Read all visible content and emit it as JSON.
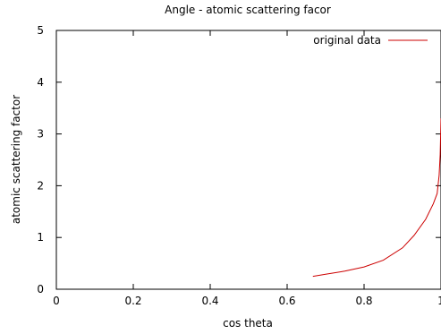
{
  "chart_data": {
    "type": "line",
    "title": "Angle - atomic scattering facor",
    "xlabel": "cos theta",
    "ylabel": "atomic scattering factor",
    "xlim": [
      0,
      1
    ],
    "ylim": [
      0,
      5
    ],
    "xticks": [
      0,
      0.2,
      0.4,
      0.6,
      0.8,
      1
    ],
    "yticks": [
      0,
      1,
      2,
      3,
      4,
      5
    ],
    "xtick_labels": [
      "0",
      "0.2",
      "0.4",
      "0.6",
      "0.8",
      "1"
    ],
    "ytick_labels": [
      "0",
      "1",
      "2",
      "3",
      "4",
      "5"
    ],
    "grid": false,
    "legend_position": "top-right",
    "series": [
      {
        "name": "original data",
        "color": "#cc0000",
        "x": [
          0.667,
          0.7,
          0.75,
          0.8,
          0.85,
          0.9,
          0.93,
          0.96,
          0.98,
          0.99,
          0.995,
          0.998,
          1.0
        ],
        "y": [
          0.25,
          0.29,
          0.35,
          0.43,
          0.56,
          0.8,
          1.04,
          1.35,
          1.65,
          1.85,
          2.2,
          2.6,
          3.3
        ]
      }
    ]
  }
}
